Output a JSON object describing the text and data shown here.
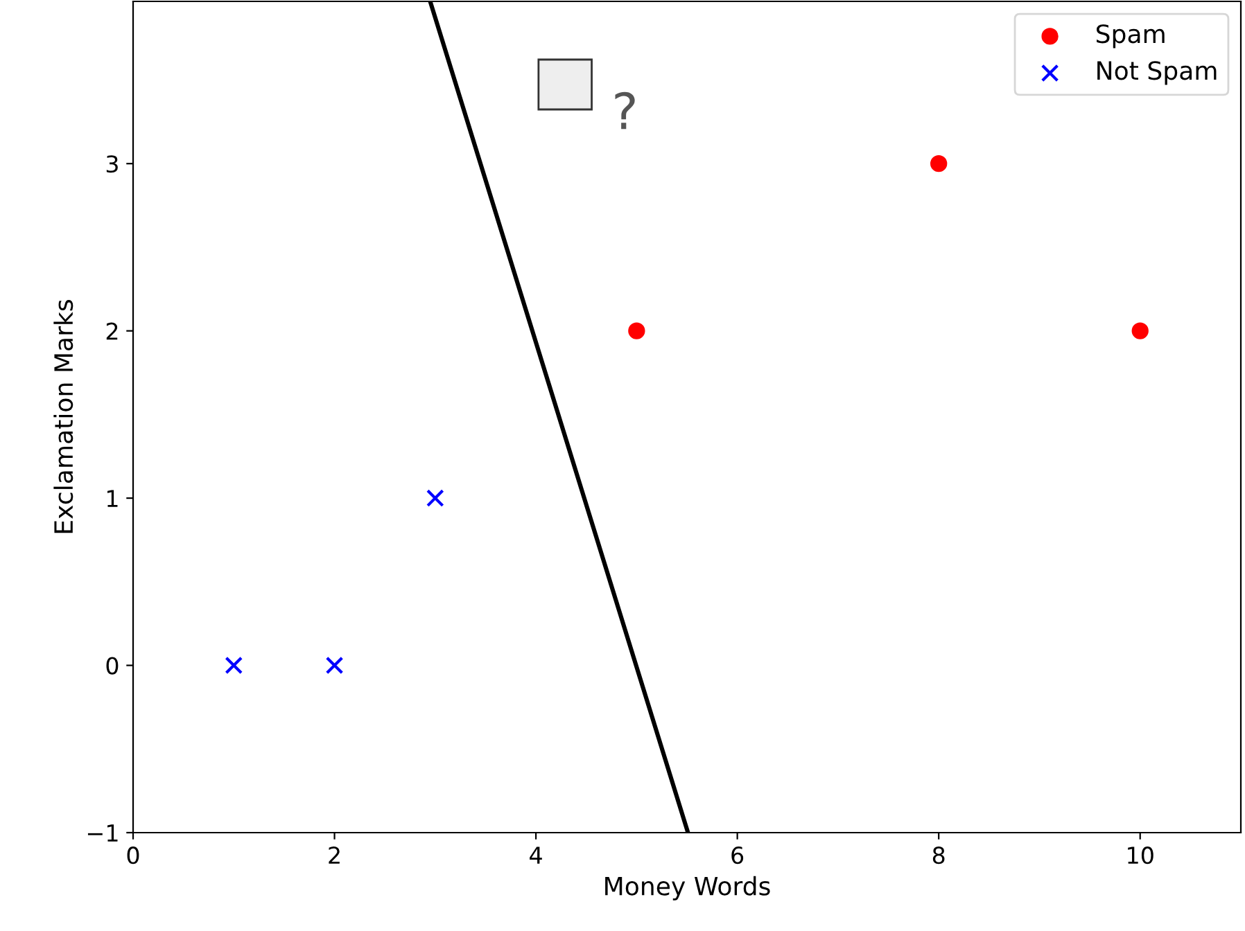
{
  "chart_data": {
    "type": "scatter",
    "xlabel": "Money Words",
    "ylabel": "Exclamation Marks",
    "xlim": [
      0,
      11
    ],
    "ylim": [
      -1,
      3.97
    ],
    "xticks": [
      0,
      2,
      4,
      6,
      8,
      10
    ],
    "yticks": [
      {
        "value": -1,
        "label": "−1"
      },
      0,
      1,
      2,
      3
    ],
    "grid": false,
    "legend": "top right",
    "series": [
      {
        "name": "Spam",
        "marker": "circle",
        "color": "#ff0000",
        "x": [
          5,
          8,
          10
        ],
        "values": [
          2,
          3,
          2
        ]
      },
      {
        "name": "Not Spam",
        "marker": "cross",
        "color": "#0000ff",
        "x": [
          1,
          2,
          3
        ],
        "values": [
          0,
          0,
          1
        ]
      },
      {
        "type": "line",
        "color": "#000000",
        "marker": "none",
        "line_style": "solid",
        "x": [
          2.95,
          5.51
        ],
        "values": [
          3.97,
          -1
        ]
      }
    ],
    "annotations": [
      "?"
    ]
  }
}
